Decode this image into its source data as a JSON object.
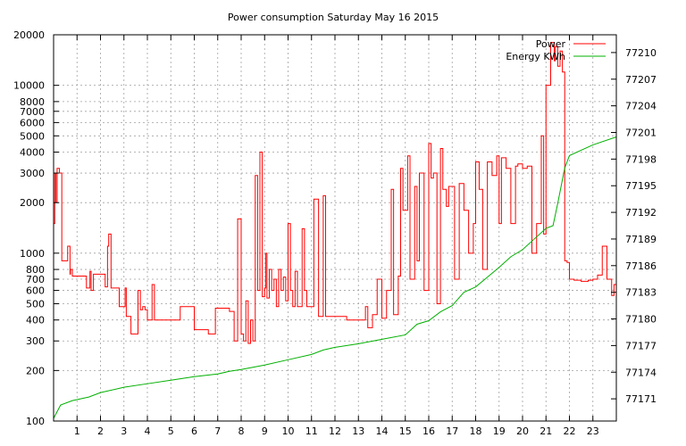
{
  "chart_data": {
    "type": "line",
    "title": "Power consumption Saturday May 16 2015",
    "xlabel": "",
    "ylabel": "",
    "xlim": [
      0,
      24
    ],
    "ylim": [
      100,
      20000
    ],
    "yscale": "log",
    "y2lim": [
      77168.5,
      77212
    ],
    "x_ticks": [
      1,
      2,
      3,
      4,
      5,
      6,
      7,
      8,
      9,
      10,
      11,
      12,
      13,
      14,
      15,
      16,
      17,
      18,
      19,
      20,
      21,
      22,
      23
    ],
    "y_ticks": [
      100,
      200,
      300,
      400,
      500,
      600,
      700,
      800,
      1000,
      2000,
      3000,
      4000,
      5000,
      6000,
      7000,
      8000,
      10000,
      20000
    ],
    "y2_ticks": [
      77171,
      77174,
      77177,
      77180,
      77183,
      77186,
      77189,
      77192,
      77195,
      77198,
      77201,
      77204,
      77207,
      77210
    ],
    "grid": true,
    "legend_position": "top-right",
    "series": [
      {
        "name": "Power",
        "axis": "y1",
        "color": "#ff0000",
        "x": [
          0,
          0.05,
          0.1,
          0.15,
          0.25,
          0.35,
          0.45,
          0.6,
          0.7,
          0.72,
          0.8,
          1,
          1.2,
          1.4,
          1.55,
          1.6,
          1.7,
          1.9,
          2.2,
          2.3,
          2.35,
          2.45,
          2.7,
          2.8,
          3,
          3.05,
          3.1,
          3.2,
          3.3,
          3.45,
          3.6,
          3.7,
          3.8,
          3.9,
          4,
          4.2,
          4.3,
          4.5,
          4.8,
          5,
          5.2,
          5.4,
          5.6,
          6,
          6.3,
          6.6,
          6.9,
          7.2,
          7.5,
          7.7,
          7.85,
          8,
          8.1,
          8.2,
          8.3,
          8.4,
          8.5,
          8.6,
          8.7,
          8.8,
          8.9,
          9,
          9.05,
          9.1,
          9.2,
          9.3,
          9.4,
          9.5,
          9.6,
          9.7,
          9.8,
          9.9,
          10,
          10.1,
          10.2,
          10.3,
          10.4,
          10.6,
          10.7,
          10.8,
          11,
          11.1,
          11.3,
          11.45,
          11.5,
          11.6,
          12,
          12.5,
          13,
          13.2,
          13.3,
          13.4,
          13.6,
          13.8,
          14,
          14.1,
          14.2,
          14.4,
          14.5,
          14.7,
          14.8,
          14.9,
          15.1,
          15.2,
          15.4,
          15.5,
          15.6,
          15.8,
          16,
          16.1,
          16.2,
          16.35,
          16.5,
          16.6,
          16.75,
          16.85,
          17,
          17.1,
          17.3,
          17.5,
          17.7,
          17.9,
          18,
          18.15,
          18.3,
          18.5,
          18.7,
          18.9,
          19,
          19.1,
          19.3,
          19.5,
          19.7,
          19.8,
          20,
          20.2,
          20.4,
          20.6,
          20.8,
          20.9,
          21,
          21.2,
          21.35,
          21.4,
          21.5,
          21.6,
          21.7,
          21.8,
          21.9,
          22,
          22.2,
          22.3,
          22.5,
          22.8,
          23,
          23.2,
          23.4,
          23.6,
          23.8,
          23.9
        ],
        "y": [
          1500,
          3000,
          2000,
          3200,
          3000,
          900,
          900,
          1100,
          750,
          800,
          730,
          730,
          730,
          620,
          780,
          600,
          750,
          750,
          630,
          1100,
          1300,
          620,
          620,
          480,
          480,
          620,
          420,
          420,
          330,
          330,
          600,
          460,
          480,
          460,
          400,
          650,
          400,
          400,
          400,
          400,
          400,
          480,
          480,
          350,
          350,
          330,
          470,
          470,
          450,
          300,
          1600,
          330,
          300,
          520,
          290,
          400,
          300,
          2900,
          600,
          4000,
          550,
          620,
          1000,
          540,
          800,
          600,
          700,
          480,
          800,
          600,
          720,
          520,
          1500,
          600,
          480,
          780,
          480,
          1400,
          600,
          480,
          480,
          2100,
          420,
          420,
          2200,
          420,
          420,
          400,
          400,
          400,
          480,
          360,
          430,
          700,
          410,
          410,
          600,
          2400,
          430,
          730,
          3200,
          1800,
          3800,
          700,
          2500,
          900,
          3000,
          600,
          4500,
          2800,
          3000,
          500,
          4200,
          2400,
          1900,
          2500,
          2500,
          700,
          2600,
          1800,
          1000,
          1500,
          3500,
          2400,
          800,
          3500,
          2900,
          3800,
          1500,
          3700,
          3200,
          1500,
          3300,
          3400,
          3200,
          3300,
          1000,
          1500,
          5000,
          1300,
          10000,
          18000,
          14000,
          17000,
          13000,
          16000,
          12000,
          900,
          880,
          700,
          690,
          690,
          680,
          690,
          700,
          740,
          1100,
          700,
          560,
          650
        ]
      },
      {
        "name": "Energy KWh",
        "axis": "y2",
        "color": "#00b000",
        "x": [
          0,
          0.3,
          0.8,
          1.5,
          2,
          3,
          4,
          5,
          6,
          7,
          7.5,
          8,
          9,
          10,
          11,
          11.5,
          12,
          13,
          14,
          15,
          15.5,
          16,
          16.5,
          17,
          17.5,
          18,
          18.5,
          19,
          19.5,
          20,
          20.5,
          21,
          21.3,
          21.5,
          21.8,
          22,
          23,
          24
        ],
        "y": [
          77168.8,
          77170.3,
          77170.8,
          77171.2,
          77171.7,
          77172.3,
          77172.7,
          77173.1,
          77173.5,
          77173.8,
          77174.1,
          77174.3,
          77174.8,
          77175.4,
          77176.0,
          77176.5,
          77176.8,
          77177.2,
          77177.7,
          77178.2,
          77179.4,
          77179.8,
          77180.8,
          77181.5,
          77183.0,
          77183.6,
          77184.7,
          77185.8,
          77187.0,
          77187.8,
          77189.0,
          77190.2,
          77190.5,
          77193.0,
          77197.0,
          77198.4,
          77199.6,
          77200.5
        ]
      }
    ]
  }
}
